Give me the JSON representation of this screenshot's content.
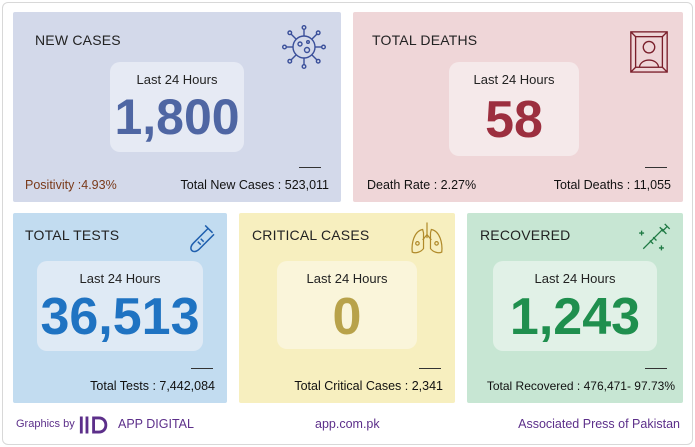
{
  "colors": {
    "new_cases": "#4f66a3",
    "deaths": "#9c2f3f",
    "tests": "#1f73c2",
    "critical": "#b8a24a",
    "recovered": "#1f8f4e",
    "footer_text": "#5c2f8a",
    "positivity_text": "#7a3a1a"
  },
  "new_cases": {
    "title": "NEW CASES",
    "period": "Last 24 Hours",
    "value": "1,800",
    "left_note": "Positivity :4.93%",
    "total": "Total New Cases : 523,011",
    "icon": "virus-icon"
  },
  "deaths": {
    "title": "TOTAL DEATHS",
    "period": "Last 24 Hours",
    "value": "58",
    "left_note": "Death Rate : 2.27%",
    "total": "Total Deaths : 11,055",
    "icon": "portrait-frame-icon"
  },
  "tests": {
    "title": "TOTAL TESTS",
    "period": "Last 24 Hours",
    "value": "36,513",
    "total": "Total Tests : 7,442,084",
    "icon": "test-tube-icon"
  },
  "critical": {
    "title": "CRITICAL CASES",
    "period": "Last 24 Hours",
    "value": "0",
    "total": "Total Critical Cases : 2,341",
    "icon": "lungs-icon"
  },
  "recovered": {
    "title": "RECOVERED",
    "period": "Last 24 Hours",
    "value": "1,243",
    "total": "Total Recovered : 476,471- 97.73%",
    "icon": "vaccine-icon"
  },
  "footer": {
    "graphics_by": "Graphics by",
    "brand": "APP DIGITAL",
    "website": "app.com.pk",
    "agency": "Associated Press of Pakistan"
  }
}
